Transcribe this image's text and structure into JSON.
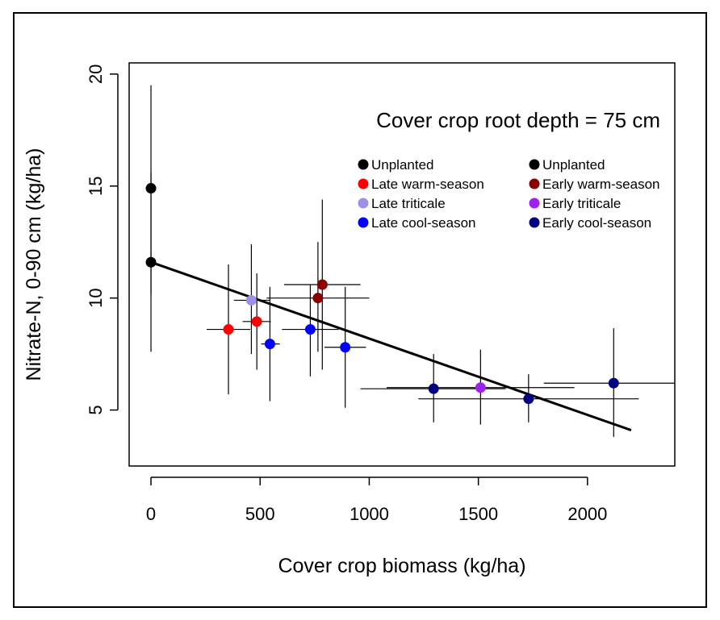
{
  "chart_data": {
    "type": "scatter",
    "title": "",
    "annotation": "Cover crop root depth = 75 cm",
    "xlabel": "Cover crop biomass (kg/ha)",
    "ylabel": "Nitrate-N, 0-90 cm (kg/ha)",
    "xlim": [
      -100,
      2400
    ],
    "ylim": [
      2.5,
      20.5
    ],
    "x_ticks": [
      0,
      500,
      1000,
      1500,
      2000
    ],
    "y_ticks": [
      5,
      10,
      15,
      20
    ],
    "grid": false,
    "legend_placement": "top-right",
    "legend": [
      {
        "label": "Unplanted",
        "color": "#000000"
      },
      {
        "label": "Unplanted",
        "color": "#000000"
      },
      {
        "label": "Late warm-season",
        "color": "#ff0000"
      },
      {
        "label": "Early warm-season",
        "color": "#8b0000"
      },
      {
        "label": "Late triticale",
        "color": "#9f8fe8"
      },
      {
        "label": "Early triticale",
        "color": "#a020f0"
      },
      {
        "label": "Late cool-season",
        "color": "#0000ff"
      },
      {
        "label": "Early cool-season",
        "color": "#000080"
      }
    ],
    "points": [
      {
        "group": "Unplanted",
        "color": "#000000",
        "x": 0,
        "y": 14.9,
        "x_lo": 0,
        "x_hi": 0,
        "y_lo": 10.2,
        "y_hi": 19.5
      },
      {
        "group": "Unplanted",
        "color": "#000000",
        "x": 0,
        "y": 11.6,
        "x_lo": 0,
        "x_hi": 0,
        "y_lo": 7.6,
        "y_hi": 15.6
      },
      {
        "group": "Late warm-season",
        "color": "#ff0000",
        "x": 355,
        "y": 8.6,
        "x_lo": 255,
        "x_hi": 455,
        "y_lo": 5.7,
        "y_hi": 11.5
      },
      {
        "group": "Late warm-season",
        "color": "#ff0000",
        "x": 485,
        "y": 8.95,
        "x_lo": 420,
        "x_hi": 550,
        "y_lo": 6.8,
        "y_hi": 11.1
      },
      {
        "group": "Late triticale",
        "color": "#9f8fe8",
        "x": 460,
        "y": 9.9,
        "x_lo": 380,
        "x_hi": 545,
        "y_lo": 7.5,
        "y_hi": 12.4
      },
      {
        "group": "Late cool-season",
        "color": "#0000ff",
        "x": 545,
        "y": 7.95,
        "x_lo": 505,
        "x_hi": 590,
        "y_lo": 5.4,
        "y_hi": 10.5
      },
      {
        "group": "Late cool-season",
        "color": "#0000ff",
        "x": 730,
        "y": 8.6,
        "x_lo": 600,
        "x_hi": 860,
        "y_lo": 6.5,
        "y_hi": 10.6
      },
      {
        "group": "Late cool-season",
        "color": "#0000ff",
        "x": 890,
        "y": 7.8,
        "x_lo": 795,
        "x_hi": 985,
        "y_lo": 5.1,
        "y_hi": 10.5
      },
      {
        "group": "Early warm-season",
        "color": "#8b0000",
        "x": 765,
        "y": 10.0,
        "x_lo": 530,
        "x_hi": 1000,
        "y_lo": 7.6,
        "y_hi": 12.5
      },
      {
        "group": "Early warm-season",
        "color": "#8b0000",
        "x": 785,
        "y": 10.6,
        "x_lo": 610,
        "x_hi": 960,
        "y_lo": 6.8,
        "y_hi": 14.4
      },
      {
        "group": "Early cool-season",
        "color": "#000080",
        "x": 1295,
        "y": 5.95,
        "x_lo": 960,
        "x_hi": 1625,
        "y_lo": 4.45,
        "y_hi": 7.5
      },
      {
        "group": "Early triticale",
        "color": "#a020f0",
        "x": 1510,
        "y": 6.0,
        "x_lo": 1080,
        "x_hi": 1940,
        "y_lo": 4.35,
        "y_hi": 7.7
      },
      {
        "group": "Early cool-season",
        "color": "#000080",
        "x": 1730,
        "y": 5.5,
        "x_lo": 1225,
        "x_hi": 2235,
        "y_lo": 4.45,
        "y_hi": 6.6
      },
      {
        "group": "Early cool-season",
        "color": "#000080",
        "x": 2120,
        "y": 6.2,
        "x_lo": 1800,
        "x_hi": 2400,
        "y_lo": 3.8,
        "y_hi": 8.65
      }
    ],
    "regression_line": {
      "x": [
        0,
        2200
      ],
      "y": [
        11.6,
        4.1
      ],
      "color": "#000000"
    }
  }
}
